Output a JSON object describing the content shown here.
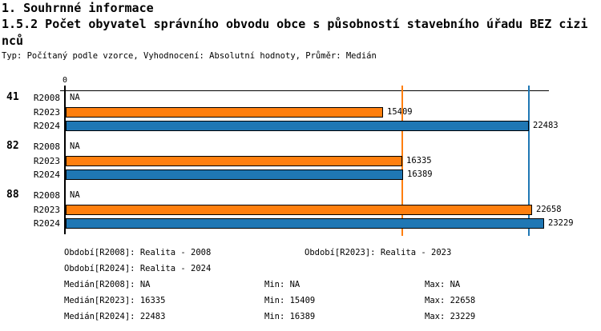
{
  "page": {
    "title_line1": "1. Souhrnné informace",
    "title_line2a": "1.5.2 Počet obyvatel správního obvodu obce s působností stavebního úřadu BEZ cizi",
    "title_line2b": "nců",
    "subtitle": "Typ: Počítaný podle vzorce, Vyhodnocení: Absolutní hodnoty, Průměr: Medián"
  },
  "chart_data": {
    "type": "bar",
    "orientation": "horizontal",
    "title": "1.5.2 Počet obyvatel správního obvodu obce s působností stavebního úřadu BEZ cizinců",
    "axis": {
      "zero_label": "0",
      "min": 0,
      "approx_max": 23500,
      "position": "top"
    },
    "colors": {
      "R2023": "#ff7f0e",
      "R2024": "#1f77b4",
      "axis": "#000000"
    },
    "groups": [
      {
        "label": "41",
        "rows": [
          {
            "series": "R2008",
            "value": null,
            "display": "NA"
          },
          {
            "series": "R2023",
            "value": 15409,
            "display": "15409",
            "color": "#ff7f0e"
          },
          {
            "series": "R2024",
            "value": 22483,
            "display": "22483",
            "color": "#1f77b4"
          }
        ]
      },
      {
        "label": "82",
        "rows": [
          {
            "series": "R2008",
            "value": null,
            "display": "NA"
          },
          {
            "series": "R2023",
            "value": 16335,
            "display": "16335",
            "color": "#ff7f0e"
          },
          {
            "series": "R2024",
            "value": 16389,
            "display": "16389",
            "color": "#1f77b4"
          }
        ]
      },
      {
        "label": "88",
        "rows": [
          {
            "series": "R2008",
            "value": null,
            "display": "NA"
          },
          {
            "series": "R2023",
            "value": 22658,
            "display": "22658",
            "color": "#ff7f0e"
          },
          {
            "series": "R2024",
            "value": 23229,
            "display": "23229",
            "color": "#1f77b4"
          }
        ]
      }
    ],
    "reference_lines": [
      {
        "name": "median-R2023",
        "value": 16335,
        "color": "#ff7f0e"
      },
      {
        "name": "median-R2024",
        "value": 22483,
        "color": "#1f77b4"
      }
    ]
  },
  "legend": {
    "obdobi": [
      {
        "label": "Období[R2008]:",
        "value": "Realita - 2008"
      },
      {
        "label": "Období[R2023]:",
        "value": "Realita - 2023"
      },
      {
        "label": "Období[R2024]:",
        "value": "Realita - 2024"
      }
    ],
    "stats": [
      {
        "median_label": "Medián[R2008]:",
        "median": "NA",
        "min_label": "Min:",
        "min": "NA",
        "max_label": "Max:",
        "max": "NA"
      },
      {
        "median_label": "Medián[R2023]:",
        "median": "16335",
        "min_label": "Min:",
        "min": "15409",
        "max_label": "Max:",
        "max": "22658"
      },
      {
        "median_label": "Medián[R2024]:",
        "median": "22483",
        "min_label": "Min:",
        "min": "16389",
        "max_label": "Max:",
        "max": "23229"
      }
    ]
  }
}
